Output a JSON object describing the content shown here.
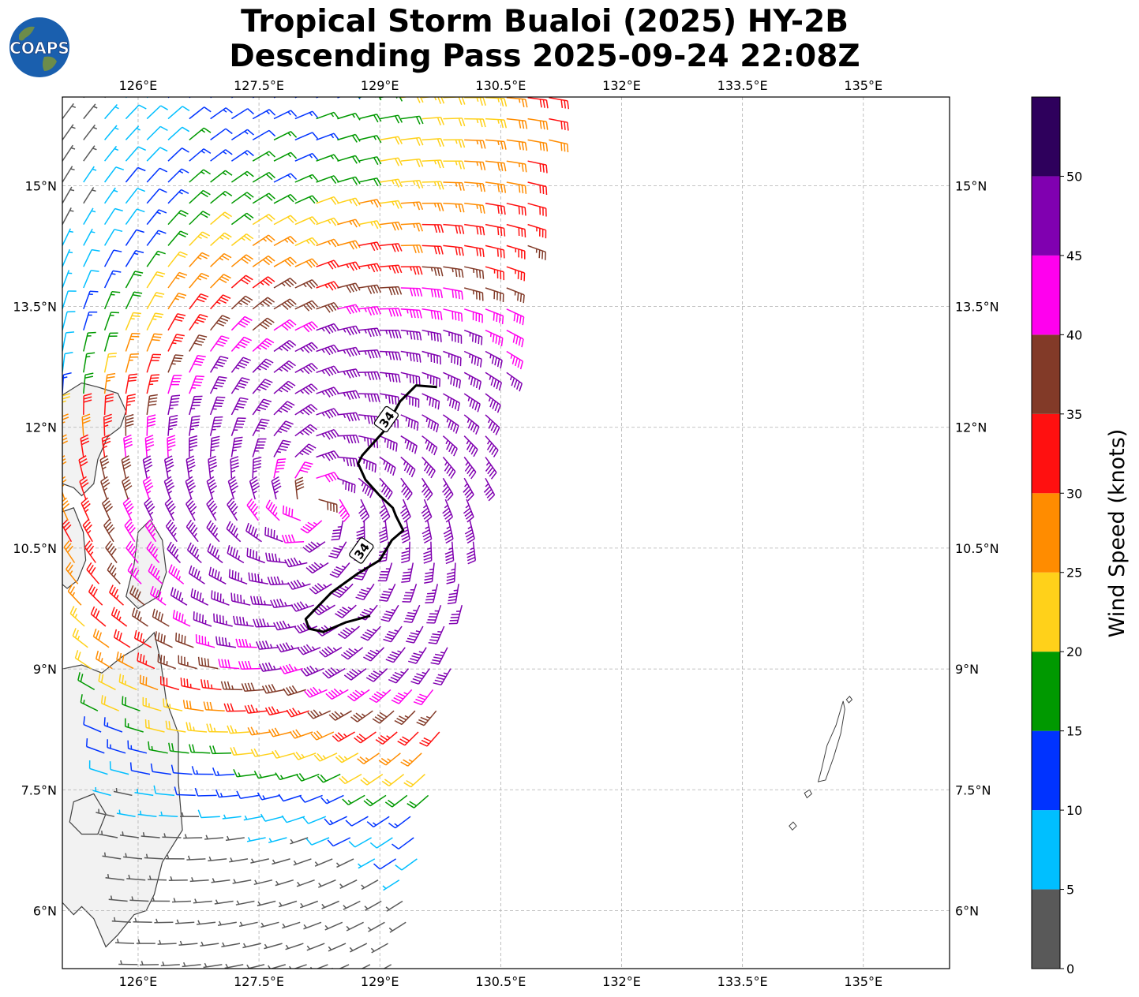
{
  "title": {
    "line1": "Tropical Storm Bualoi (2025) HY-2B",
    "line2": "Descending Pass 2025-09-24 22:08Z"
  },
  "logo": {
    "text": "COAPS",
    "ocean": "#1a5fae",
    "land": "#6c8c4a"
  },
  "map": {
    "lon_min": 125.06,
    "lon_max": 136.07,
    "lat_min": 5.28,
    "lat_max": 16.1,
    "land_color": "#f2f2f2",
    "coast_color": "#404040",
    "grid_color": "#b0b0b0",
    "lon_ticks": [
      {
        "v": 126.0,
        "t": "126°E"
      },
      {
        "v": 127.5,
        "t": "127.5°E"
      },
      {
        "v": 129.0,
        "t": "129°E"
      },
      {
        "v": 130.5,
        "t": "130.5°E"
      },
      {
        "v": 132.0,
        "t": "132°E"
      },
      {
        "v": 133.5,
        "t": "133.5°E"
      },
      {
        "v": 135.0,
        "t": "135°E"
      }
    ],
    "lat_ticks": [
      {
        "v": 6.0,
        "t": "6°N"
      },
      {
        "v": 7.5,
        "t": "7.5°N"
      },
      {
        "v": 9.0,
        "t": "9°N"
      },
      {
        "v": 10.5,
        "t": "10.5°N"
      },
      {
        "v": 12.0,
        "t": "12°N"
      },
      {
        "v": 13.5,
        "t": "13.5°N"
      },
      {
        "v": 15.0,
        "t": "15°N"
      }
    ],
    "contour": {
      "label": "34",
      "label_positions": [
        [
          129.08,
          12.1
        ],
        [
          128.77,
          10.47
        ]
      ],
      "segments": [
        [
          [
            129.71,
            12.5
          ],
          [
            129.45,
            12.52
          ],
          [
            129.25,
            12.32
          ],
          [
            129.05,
            11.95
          ],
          [
            128.78,
            11.65
          ],
          [
            128.73,
            11.55
          ],
          [
            128.82,
            11.35
          ],
          [
            129.0,
            11.15
          ],
          [
            129.16,
            11.0
          ],
          [
            129.2,
            10.9
          ],
          [
            129.29,
            10.72
          ],
          [
            129.15,
            10.6
          ],
          [
            129.0,
            10.35
          ],
          [
            128.72,
            10.18
          ],
          [
            128.4,
            9.95
          ],
          [
            128.08,
            9.62
          ],
          [
            128.12,
            9.5
          ],
          [
            128.3,
            9.46
          ],
          [
            128.58,
            9.58
          ],
          [
            128.88,
            9.66
          ]
        ]
      ]
    },
    "land": [
      [
        [
          125.06,
          12.4
        ],
        [
          125.3,
          12.55
        ],
        [
          125.5,
          12.5
        ],
        [
          125.75,
          12.42
        ],
        [
          125.85,
          12.2
        ],
        [
          125.78,
          12.0
        ],
        [
          125.62,
          11.88
        ],
        [
          125.5,
          11.6
        ],
        [
          125.45,
          11.3
        ],
        [
          125.3,
          11.15
        ],
        [
          125.2,
          11.25
        ],
        [
          125.06,
          11.3
        ]
      ],
      [
        [
          125.06,
          10.95
        ],
        [
          125.2,
          11.0
        ],
        [
          125.32,
          10.7
        ],
        [
          125.35,
          10.35
        ],
        [
          125.25,
          10.1
        ],
        [
          125.12,
          10.0
        ],
        [
          125.06,
          10.05
        ]
      ],
      [
        [
          125.95,
          10.3
        ],
        [
          126.0,
          10.7
        ],
        [
          126.15,
          10.85
        ],
        [
          126.3,
          10.6
        ],
        [
          126.35,
          10.2
        ],
        [
          126.25,
          9.9
        ],
        [
          126.0,
          9.75
        ],
        [
          125.85,
          9.9
        ]
      ],
      [
        [
          125.06,
          9.0
        ],
        [
          125.3,
          9.05
        ],
        [
          125.55,
          8.95
        ],
        [
          125.8,
          9.15
        ],
        [
          126.05,
          9.3
        ],
        [
          126.2,
          9.45
        ],
        [
          126.28,
          9.1
        ],
        [
          126.35,
          8.6
        ],
        [
          126.5,
          8.2
        ],
        [
          126.5,
          7.6
        ],
        [
          126.55,
          7.0
        ],
        [
          126.3,
          6.6
        ],
        [
          126.2,
          6.2
        ],
        [
          126.1,
          6.0
        ],
        [
          125.95,
          5.95
        ],
        [
          125.75,
          5.7
        ],
        [
          125.6,
          5.55
        ],
        [
          125.45,
          5.9
        ],
        [
          125.3,
          6.05
        ],
        [
          125.2,
          5.95
        ],
        [
          125.06,
          6.1
        ]
      ],
      [
        [
          125.2,
          7.35
        ],
        [
          125.45,
          7.45
        ],
        [
          125.6,
          7.2
        ],
        [
          125.5,
          6.95
        ],
        [
          125.3,
          6.95
        ],
        [
          125.15,
          7.1
        ]
      ]
    ],
    "islands": [
      [
        [
          134.75,
          8.6
        ],
        [
          134.66,
          8.3
        ],
        [
          134.55,
          8.05
        ],
        [
          134.48,
          7.75
        ],
        [
          134.44,
          7.6
        ],
        [
          134.53,
          7.62
        ],
        [
          134.63,
          7.9
        ],
        [
          134.72,
          8.2
        ],
        [
          134.77,
          8.5
        ]
      ],
      [
        [
          134.3,
          7.4
        ],
        [
          134.36,
          7.45
        ],
        [
          134.33,
          7.5
        ],
        [
          134.27,
          7.46
        ]
      ],
      [
        [
          134.12,
          7.0
        ],
        [
          134.17,
          7.05
        ],
        [
          134.13,
          7.1
        ],
        [
          134.08,
          7.05
        ]
      ],
      [
        [
          134.82,
          8.58
        ],
        [
          134.86,
          8.62
        ],
        [
          134.83,
          8.66
        ],
        [
          134.79,
          8.62
        ]
      ]
    ]
  },
  "colorbar": {
    "label": "Wind Speed (knots)",
    "levels": [
      0,
      5,
      10,
      15,
      20,
      25,
      30,
      35,
      40,
      45,
      50,
      55
    ],
    "colors": [
      "#595959",
      "#00bfff",
      "#0033ff",
      "#009900",
      "#ffd11a",
      "#ff8c00",
      "#ff1010",
      "#823a28",
      "#ff00ee",
      "#8000b0",
      "#2e005c"
    ],
    "tick_labels": [
      "0",
      "5",
      "10",
      "15",
      "20",
      "25",
      "30",
      "35",
      "40",
      "45",
      "50"
    ]
  },
  "wind_field": {
    "center": [
      128.2,
      11.05
    ],
    "swath_east_top": 131.2,
    "swath_east_bottom": 129.3,
    "swath_west_top": 125.06,
    "swath_west_bottom": 126.0,
    "spacing_deg": 0.25
  }
}
